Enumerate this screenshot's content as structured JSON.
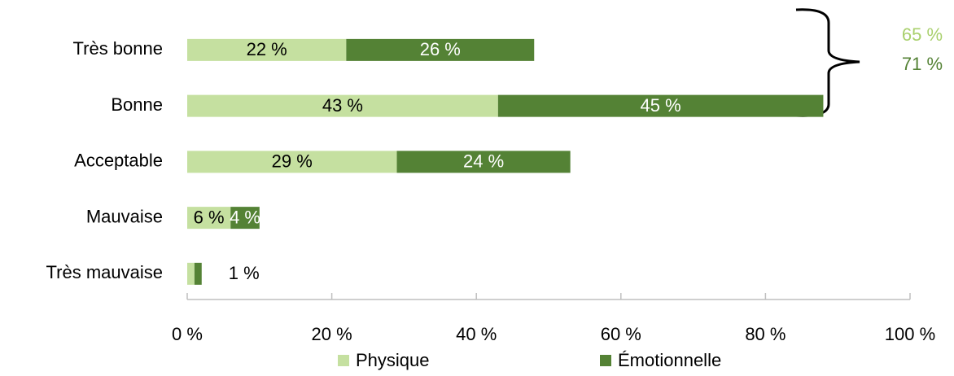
{
  "chart_data": {
    "type": "stacked_barh",
    "categories": [
      "Très bonne",
      "Bonne",
      "Acceptable",
      "Mauvaise",
      "Très mauvaise"
    ],
    "series": [
      {
        "name": "Physique",
        "color": "#c5e0a0",
        "label_color": "#000000",
        "values": [
          22,
          43,
          29,
          6,
          1
        ],
        "value_labels": [
          "22 %",
          "43 %",
          "29 %",
          "6 %",
          null
        ]
      },
      {
        "name": "Émotionnelle",
        "color": "#548235",
        "label_color": "#ffffff",
        "values": [
          26,
          45,
          24,
          4,
          1
        ],
        "value_labels": [
          "26 %",
          "45 %",
          "24 %",
          "4 %",
          "1 %"
        ]
      }
    ],
    "xlim": [
      0,
      100
    ],
    "xticks": [
      {
        "value": 0,
        "label": "0 %"
      },
      {
        "value": 20,
        "label": "20 %"
      },
      {
        "value": 40,
        "label": "40 %"
      },
      {
        "value": 60,
        "label": "60 %"
      },
      {
        "value": 80,
        "label": "80 %"
      },
      {
        "value": 100,
        "label": "100 %"
      }
    ],
    "annotations": [
      {
        "text": "65 %",
        "color": "#a9d06d"
      },
      {
        "text": "71 %",
        "color": "#548235"
      }
    ],
    "legend": "bottom"
  }
}
